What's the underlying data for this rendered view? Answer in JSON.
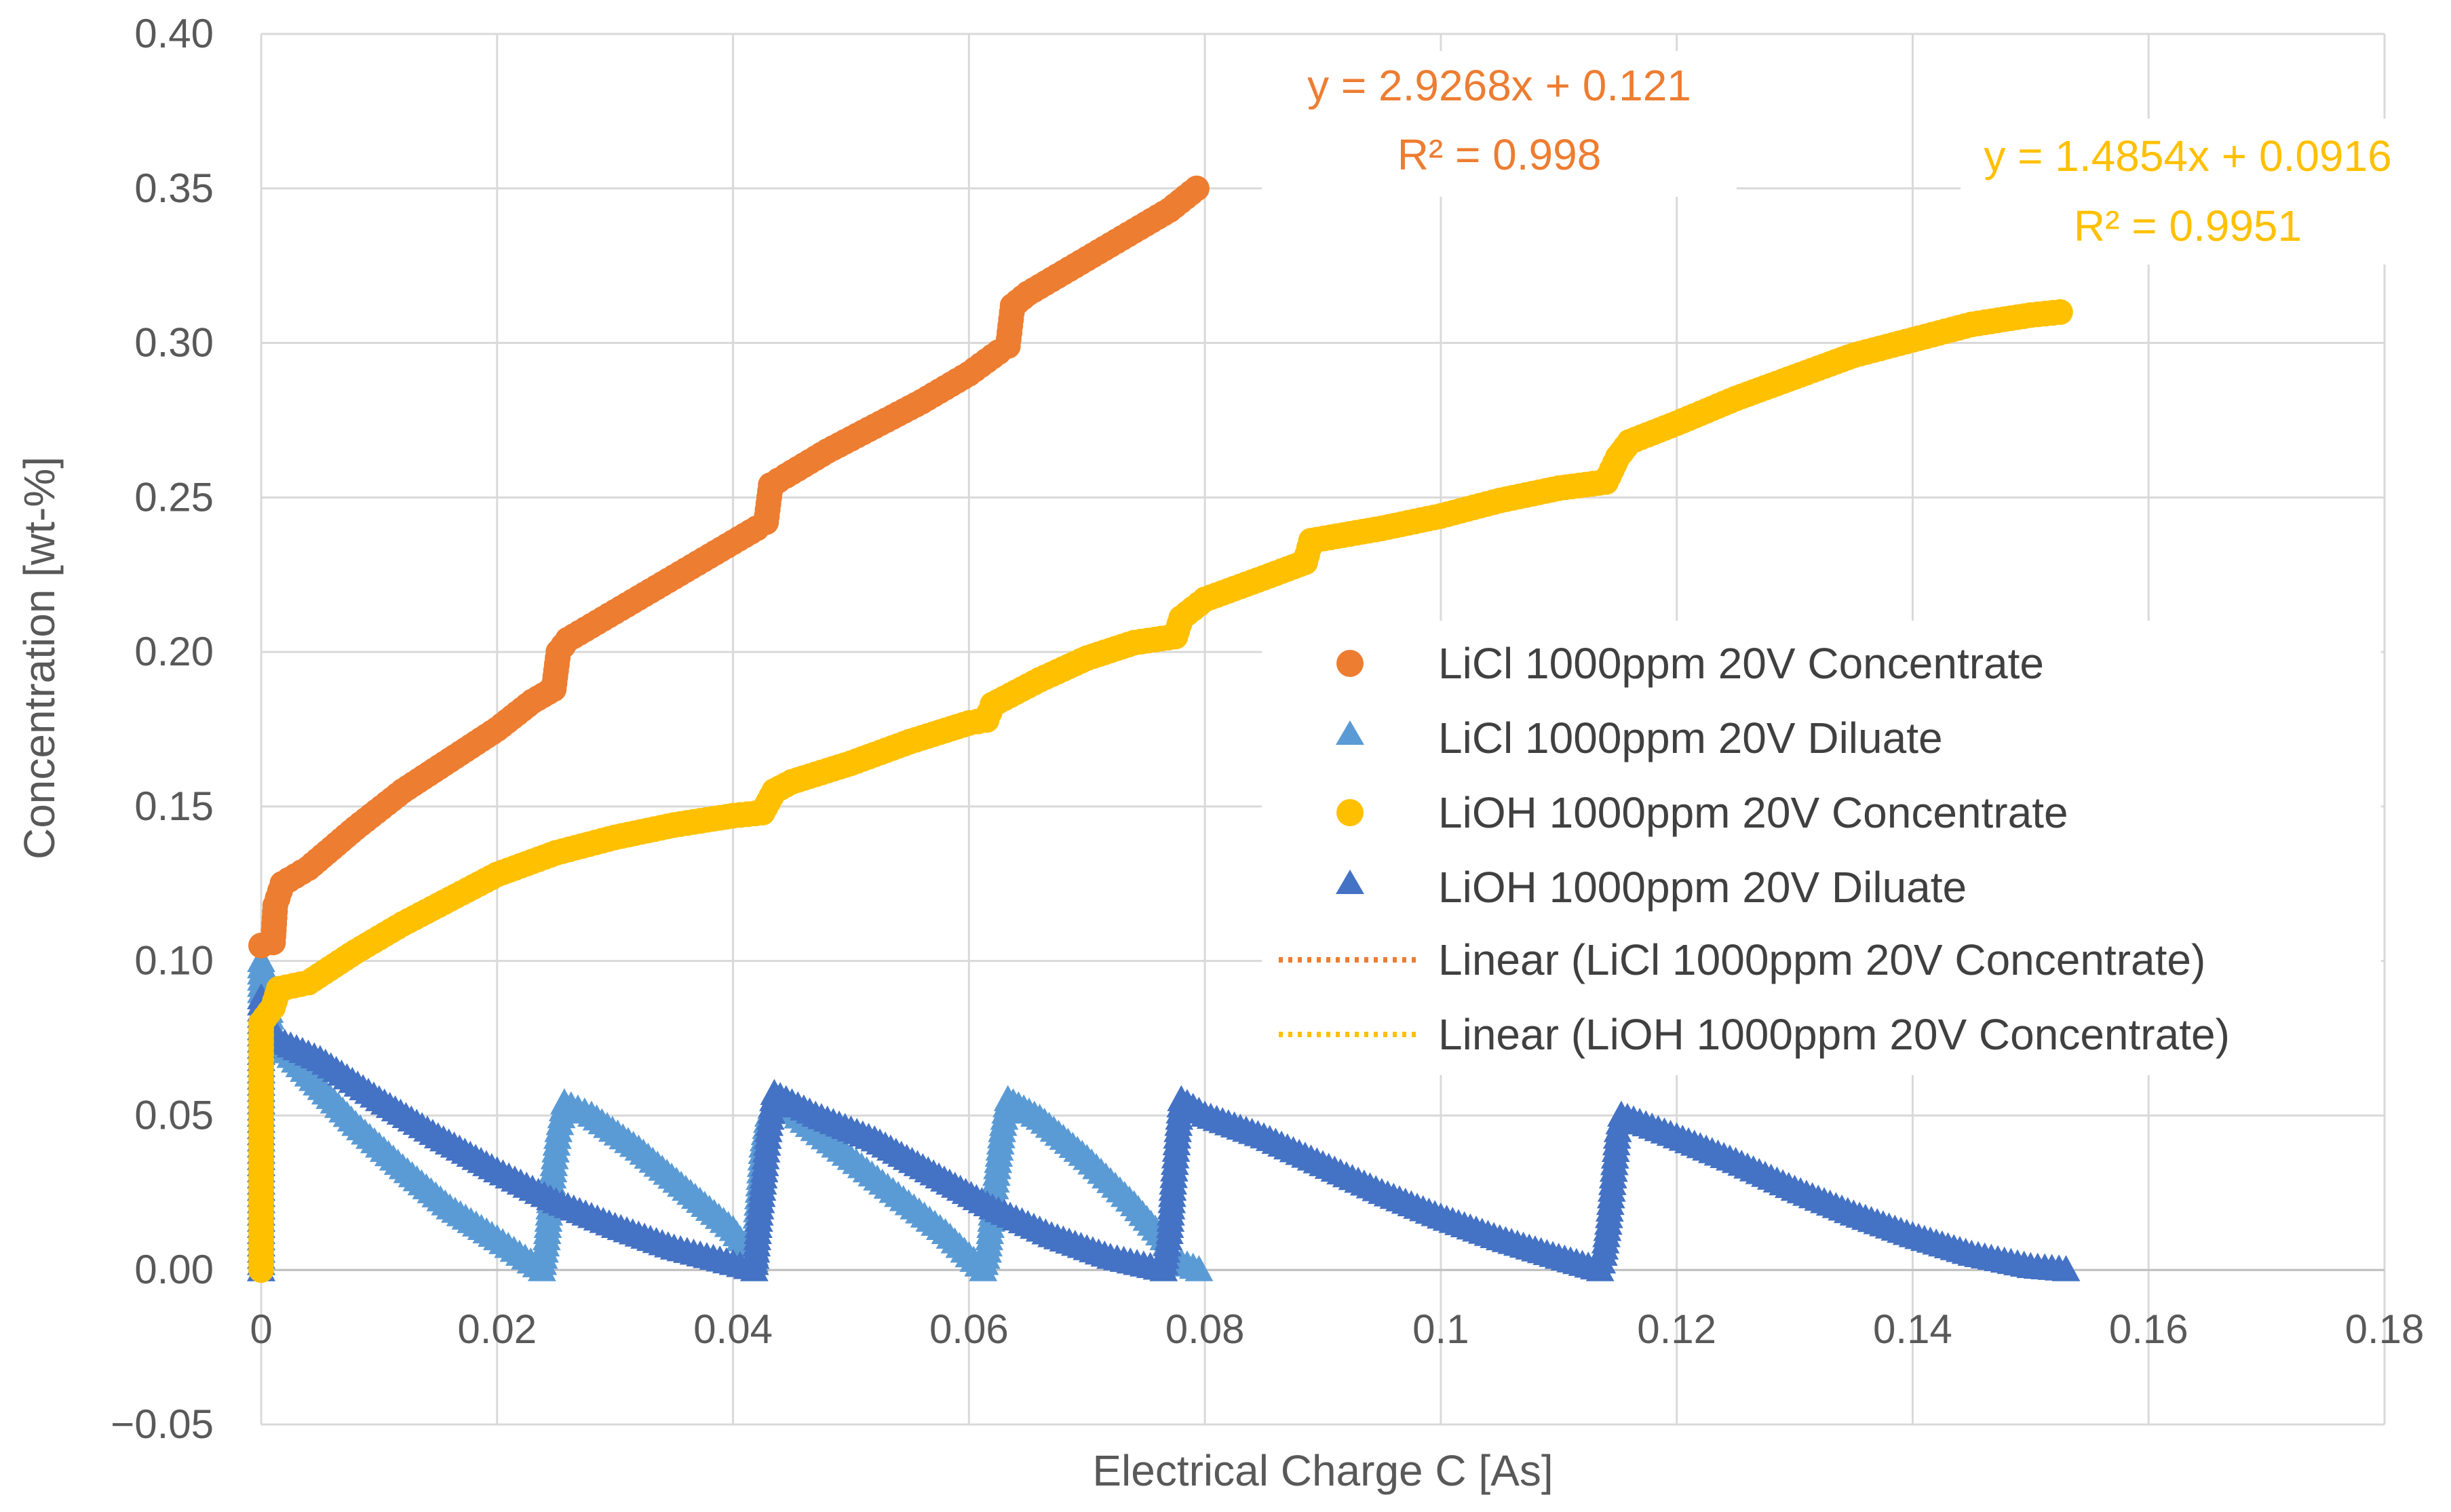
{
  "chart_data": {
    "type": "scatter",
    "xlabel": "Electrical Charge C [As]",
    "ylabel": "Concentration [wt-%]",
    "xlim": [
      0,
      0.18
    ],
    "ylim": [
      -0.05,
      0.4
    ],
    "xticks": [
      0,
      0.02,
      0.04,
      0.06,
      0.08,
      0.1,
      0.12,
      0.14,
      0.16,
      0.18
    ],
    "xtick_labels": [
      "0",
      "0.02",
      "0.04",
      "0.06",
      "0.08",
      "0.1",
      "0.12",
      "0.14",
      "0.16",
      "0.18"
    ],
    "yticks": [
      -0.05,
      0,
      0.05,
      0.1,
      0.15,
      0.2,
      0.25,
      0.3,
      0.35,
      0.4
    ],
    "ytick_labels": [
      "−0.05",
      "0.00",
      "0.05",
      "0.10",
      "0.15",
      "0.20",
      "0.25",
      "0.30",
      "0.35",
      "0.40"
    ],
    "grid": true,
    "legend_position": "right",
    "series": [
      {
        "name": "LiCl 1000ppm 20V Concentrate",
        "marker": "circle",
        "color": "#ED7D31",
        "points": [
          [
            0,
            0.105
          ],
          [
            0.001,
            0.106
          ],
          [
            0.0012,
            0.118
          ],
          [
            0.0018,
            0.125
          ],
          [
            0.004,
            0.13
          ],
          [
            0.008,
            0.143
          ],
          [
            0.012,
            0.155
          ],
          [
            0.016,
            0.165
          ],
          [
            0.02,
            0.175
          ],
          [
            0.023,
            0.184
          ],
          [
            0.0248,
            0.188
          ],
          [
            0.0252,
            0.2
          ],
          [
            0.026,
            0.204
          ],
          [
            0.03,
            0.213
          ],
          [
            0.034,
            0.222
          ],
          [
            0.038,
            0.231
          ],
          [
            0.042,
            0.24
          ],
          [
            0.0428,
            0.242
          ],
          [
            0.0432,
            0.254
          ],
          [
            0.0445,
            0.257
          ],
          [
            0.048,
            0.265
          ],
          [
            0.052,
            0.273
          ],
          [
            0.056,
            0.281
          ],
          [
            0.06,
            0.29
          ],
          [
            0.0625,
            0.297
          ],
          [
            0.0633,
            0.299
          ],
          [
            0.0637,
            0.312
          ],
          [
            0.065,
            0.316
          ],
          [
            0.069,
            0.325
          ],
          [
            0.073,
            0.334
          ],
          [
            0.077,
            0.343
          ],
          [
            0.0793,
            0.35
          ]
        ]
      },
      {
        "name": "LiCl 1000ppm 20V Diluate",
        "marker": "triangle",
        "color": "#5B9BD5",
        "points": [
          [
            0,
            0.0
          ],
          [
            0,
            0.1
          ],
          [
            0.0005,
            0.09
          ],
          [
            0.001,
            0.075
          ],
          [
            0.004,
            0.063
          ],
          [
            0.008,
            0.047
          ],
          [
            0.012,
            0.033
          ],
          [
            0.016,
            0.02
          ],
          [
            0.02,
            0.01
          ],
          [
            0.0238,
            0.0
          ],
          [
            0.0242,
            0.01
          ],
          [
            0.0245,
            0.022
          ],
          [
            0.0248,
            0.034
          ],
          [
            0.0252,
            0.045
          ],
          [
            0.0257,
            0.054
          ],
          [
            0.028,
            0.05
          ],
          [
            0.032,
            0.039
          ],
          [
            0.036,
            0.026
          ],
          [
            0.04,
            0.013
          ],
          [
            0.0418,
            0.003
          ],
          [
            0.042,
            0.017
          ],
          [
            0.0425,
            0.04
          ],
          [
            0.043,
            0.05
          ],
          [
            0.0435,
            0.055
          ],
          [
            0.046,
            0.048
          ],
          [
            0.05,
            0.036
          ],
          [
            0.054,
            0.024
          ],
          [
            0.058,
            0.012
          ],
          [
            0.0612,
            0.0
          ],
          [
            0.0616,
            0.006
          ],
          [
            0.062,
            0.02
          ],
          [
            0.0624,
            0.033
          ],
          [
            0.0628,
            0.045
          ],
          [
            0.0633,
            0.055
          ],
          [
            0.066,
            0.049
          ],
          [
            0.07,
            0.036
          ],
          [
            0.074,
            0.021
          ],
          [
            0.0765,
            0.01
          ],
          [
            0.0775,
            0.003
          ],
          [
            0.0795,
            0.0
          ]
        ]
      },
      {
        "name": "LiOH 1000ppm 20V Concentrate",
        "marker": "circle",
        "color": "#FFC000",
        "points": [
          [
            0,
            0.0
          ],
          [
            0,
            0.08
          ],
          [
            0.001,
            0.085
          ],
          [
            0.0015,
            0.091
          ],
          [
            0.004,
            0.093
          ],
          [
            0.008,
            0.103
          ],
          [
            0.012,
            0.112
          ],
          [
            0.016,
            0.12
          ],
          [
            0.02,
            0.128
          ],
          [
            0.025,
            0.135
          ],
          [
            0.03,
            0.14
          ],
          [
            0.035,
            0.144
          ],
          [
            0.04,
            0.147
          ],
          [
            0.0425,
            0.148
          ],
          [
            0.0435,
            0.155
          ],
          [
            0.045,
            0.158
          ],
          [
            0.05,
            0.164
          ],
          [
            0.055,
            0.171
          ],
          [
            0.06,
            0.177
          ],
          [
            0.0615,
            0.178
          ],
          [
            0.062,
            0.183
          ],
          [
            0.066,
            0.191
          ],
          [
            0.07,
            0.198
          ],
          [
            0.074,
            0.203
          ],
          [
            0.0775,
            0.205
          ],
          [
            0.078,
            0.211
          ],
          [
            0.08,
            0.217
          ],
          [
            0.085,
            0.224
          ],
          [
            0.0885,
            0.229
          ],
          [
            0.089,
            0.236
          ],
          [
            0.095,
            0.24
          ],
          [
            0.1,
            0.244
          ],
          [
            0.105,
            0.249
          ],
          [
            0.11,
            0.253
          ],
          [
            0.114,
            0.255
          ],
          [
            0.115,
            0.263
          ],
          [
            0.116,
            0.268
          ],
          [
            0.12,
            0.274
          ],
          [
            0.125,
            0.282
          ],
          [
            0.13,
            0.289
          ],
          [
            0.135,
            0.296
          ],
          [
            0.14,
            0.301
          ],
          [
            0.145,
            0.306
          ],
          [
            0.15,
            0.309
          ],
          [
            0.1525,
            0.31
          ]
        ]
      },
      {
        "name": "LiOH 1000ppm 20V Diluate",
        "marker": "triangle",
        "color": "#4472C4",
        "points": [
          [
            0,
            0.0
          ],
          [
            0,
            0.088
          ],
          [
            0.0005,
            0.08
          ],
          [
            0.001,
            0.075
          ],
          [
            0.005,
            0.068
          ],
          [
            0.01,
            0.055
          ],
          [
            0.015,
            0.043
          ],
          [
            0.02,
            0.032
          ],
          [
            0.025,
            0.022
          ],
          [
            0.03,
            0.014
          ],
          [
            0.035,
            0.007
          ],
          [
            0.04,
            0.002
          ],
          [
            0.0418,
            0.0
          ],
          [
            0.042,
            0.008
          ],
          [
            0.0423,
            0.02
          ],
          [
            0.0427,
            0.034
          ],
          [
            0.043,
            0.045
          ],
          [
            0.0435,
            0.057
          ],
          [
            0.047,
            0.05
          ],
          [
            0.052,
            0.042
          ],
          [
            0.057,
            0.031
          ],
          [
            0.062,
            0.02
          ],
          [
            0.067,
            0.011
          ],
          [
            0.072,
            0.004
          ],
          [
            0.0765,
            0.0
          ],
          [
            0.077,
            0.012
          ],
          [
            0.0773,
            0.028
          ],
          [
            0.0777,
            0.045
          ],
          [
            0.078,
            0.055
          ],
          [
            0.08,
            0.05
          ],
          [
            0.085,
            0.043
          ],
          [
            0.09,
            0.034
          ],
          [
            0.095,
            0.025
          ],
          [
            0.1,
            0.017
          ],
          [
            0.105,
            0.01
          ],
          [
            0.11,
            0.004
          ],
          [
            0.1135,
            0.0
          ],
          [
            0.1138,
            0.005
          ],
          [
            0.1142,
            0.015
          ],
          [
            0.1146,
            0.03
          ],
          [
            0.115,
            0.045
          ],
          [
            0.1153,
            0.05
          ],
          [
            0.12,
            0.043
          ],
          [
            0.125,
            0.035
          ],
          [
            0.13,
            0.026
          ],
          [
            0.135,
            0.018
          ],
          [
            0.14,
            0.011
          ],
          [
            0.145,
            0.005
          ],
          [
            0.15,
            0.001
          ],
          [
            0.153,
            0.0
          ]
        ]
      }
    ],
    "trendlines": [
      {
        "name": "Linear (LiCl 1000ppm 20V Concentrate)",
        "style": "dotted",
        "color": "#ED7D31",
        "equation": "y = 2.9268x + 0.121",
        "r2": "R² = 0.998"
      },
      {
        "name": "Linear (LiOH 1000ppm 20V Concentrate)",
        "style": "dotted",
        "color": "#FFC000",
        "equation": "y = 1.4854x + 0.0916",
        "r2": "R² = 0.9951"
      }
    ]
  }
}
